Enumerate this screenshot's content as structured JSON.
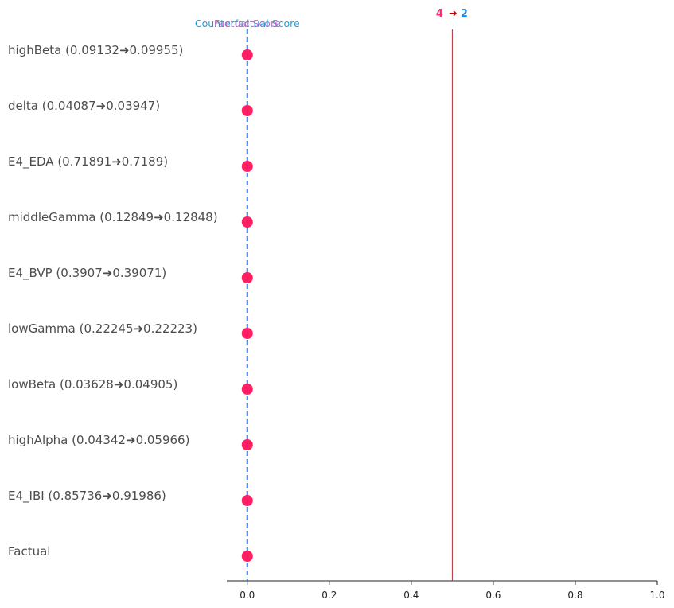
{
  "chart_data": {
    "type": "scatter",
    "rows": [
      {
        "label": "highBeta (0.09132➜0.09955)",
        "value": 0.0
      },
      {
        "label": "delta (0.04087➜0.03947)",
        "value": 0.0
      },
      {
        "label": "E4_EDA (0.71891➜0.7189)",
        "value": 0.0
      },
      {
        "label": "middleGamma (0.12849➜0.12848)",
        "value": 0.0
      },
      {
        "label": "E4_BVP (0.3907➜0.39071)",
        "value": 0.0
      },
      {
        "label": "lowGamma (0.22245➜0.22223)",
        "value": 0.0
      },
      {
        "label": "lowBeta (0.03628➜0.04905)",
        "value": 0.0
      },
      {
        "label": "highAlpha (0.04342➜0.05966)",
        "value": 0.0
      },
      {
        "label": "E4_IBI (0.85736➜0.91986)",
        "value": 0.0
      },
      {
        "label": "Factual",
        "value": 0.0
      }
    ],
    "xlim": [
      -0.05,
      1.0
    ],
    "xticks": [
      0.0,
      0.2,
      0.4,
      0.6,
      0.8,
      1.0
    ],
    "xtick_labels": [
      "0.0",
      "0.2",
      "0.4",
      "0.6",
      "0.8",
      "1.0"
    ],
    "factual_score": 0.0,
    "counterfactual_score": 0.0,
    "threshold": 0.5,
    "factual_score_label": "Factual Score",
    "counterfactual_score_label": "Counterfactual Score",
    "class_from": "4",
    "class_arrow": "➜",
    "class_to": "2",
    "grid": false,
    "colors": {
      "point": "#ff0d57",
      "dashed_line": "#2f6dd5",
      "threshold_line": "#b03030",
      "factual_label": "#cc55cc",
      "counterfactual_label": "#1e9ee0",
      "class_from": "#ff2d78",
      "class_arrow": "#c00000",
      "class_to": "#1e88e5"
    }
  }
}
